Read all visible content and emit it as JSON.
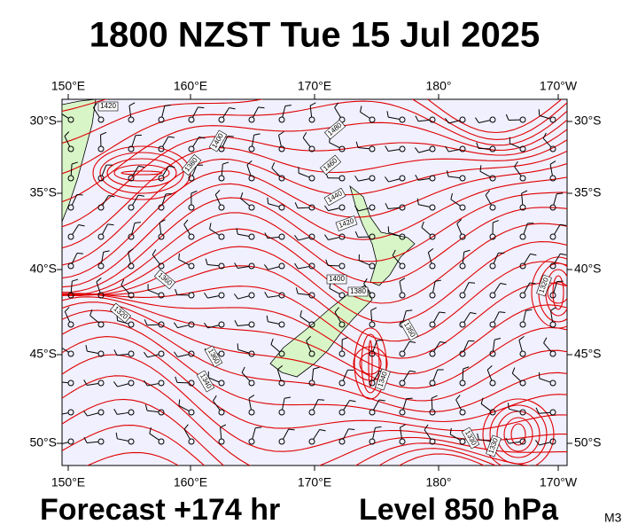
{
  "header": {
    "title": "1800 NZST Tue 15 Jul 2025"
  },
  "map": {
    "lon_labels": [
      "150°E",
      "160°E",
      "170°E",
      "180°",
      "170°W"
    ],
    "lat_labels": [
      "30°S",
      "35°S",
      "40°S",
      "45°S",
      "50°S"
    ],
    "contour_labels": [
      "1420",
      "1480",
      "1380",
      "1400",
      "1460",
      "1440",
      "1420",
      "1400",
      "1380",
      "1360",
      "1320",
      "1360",
      "1340",
      "1350",
      "1340",
      "1330",
      "1330",
      "1320"
    ]
  },
  "footer": {
    "forecast": "Forecast +174 hr",
    "level": "Level 850 hPa",
    "model": "M3"
  }
}
